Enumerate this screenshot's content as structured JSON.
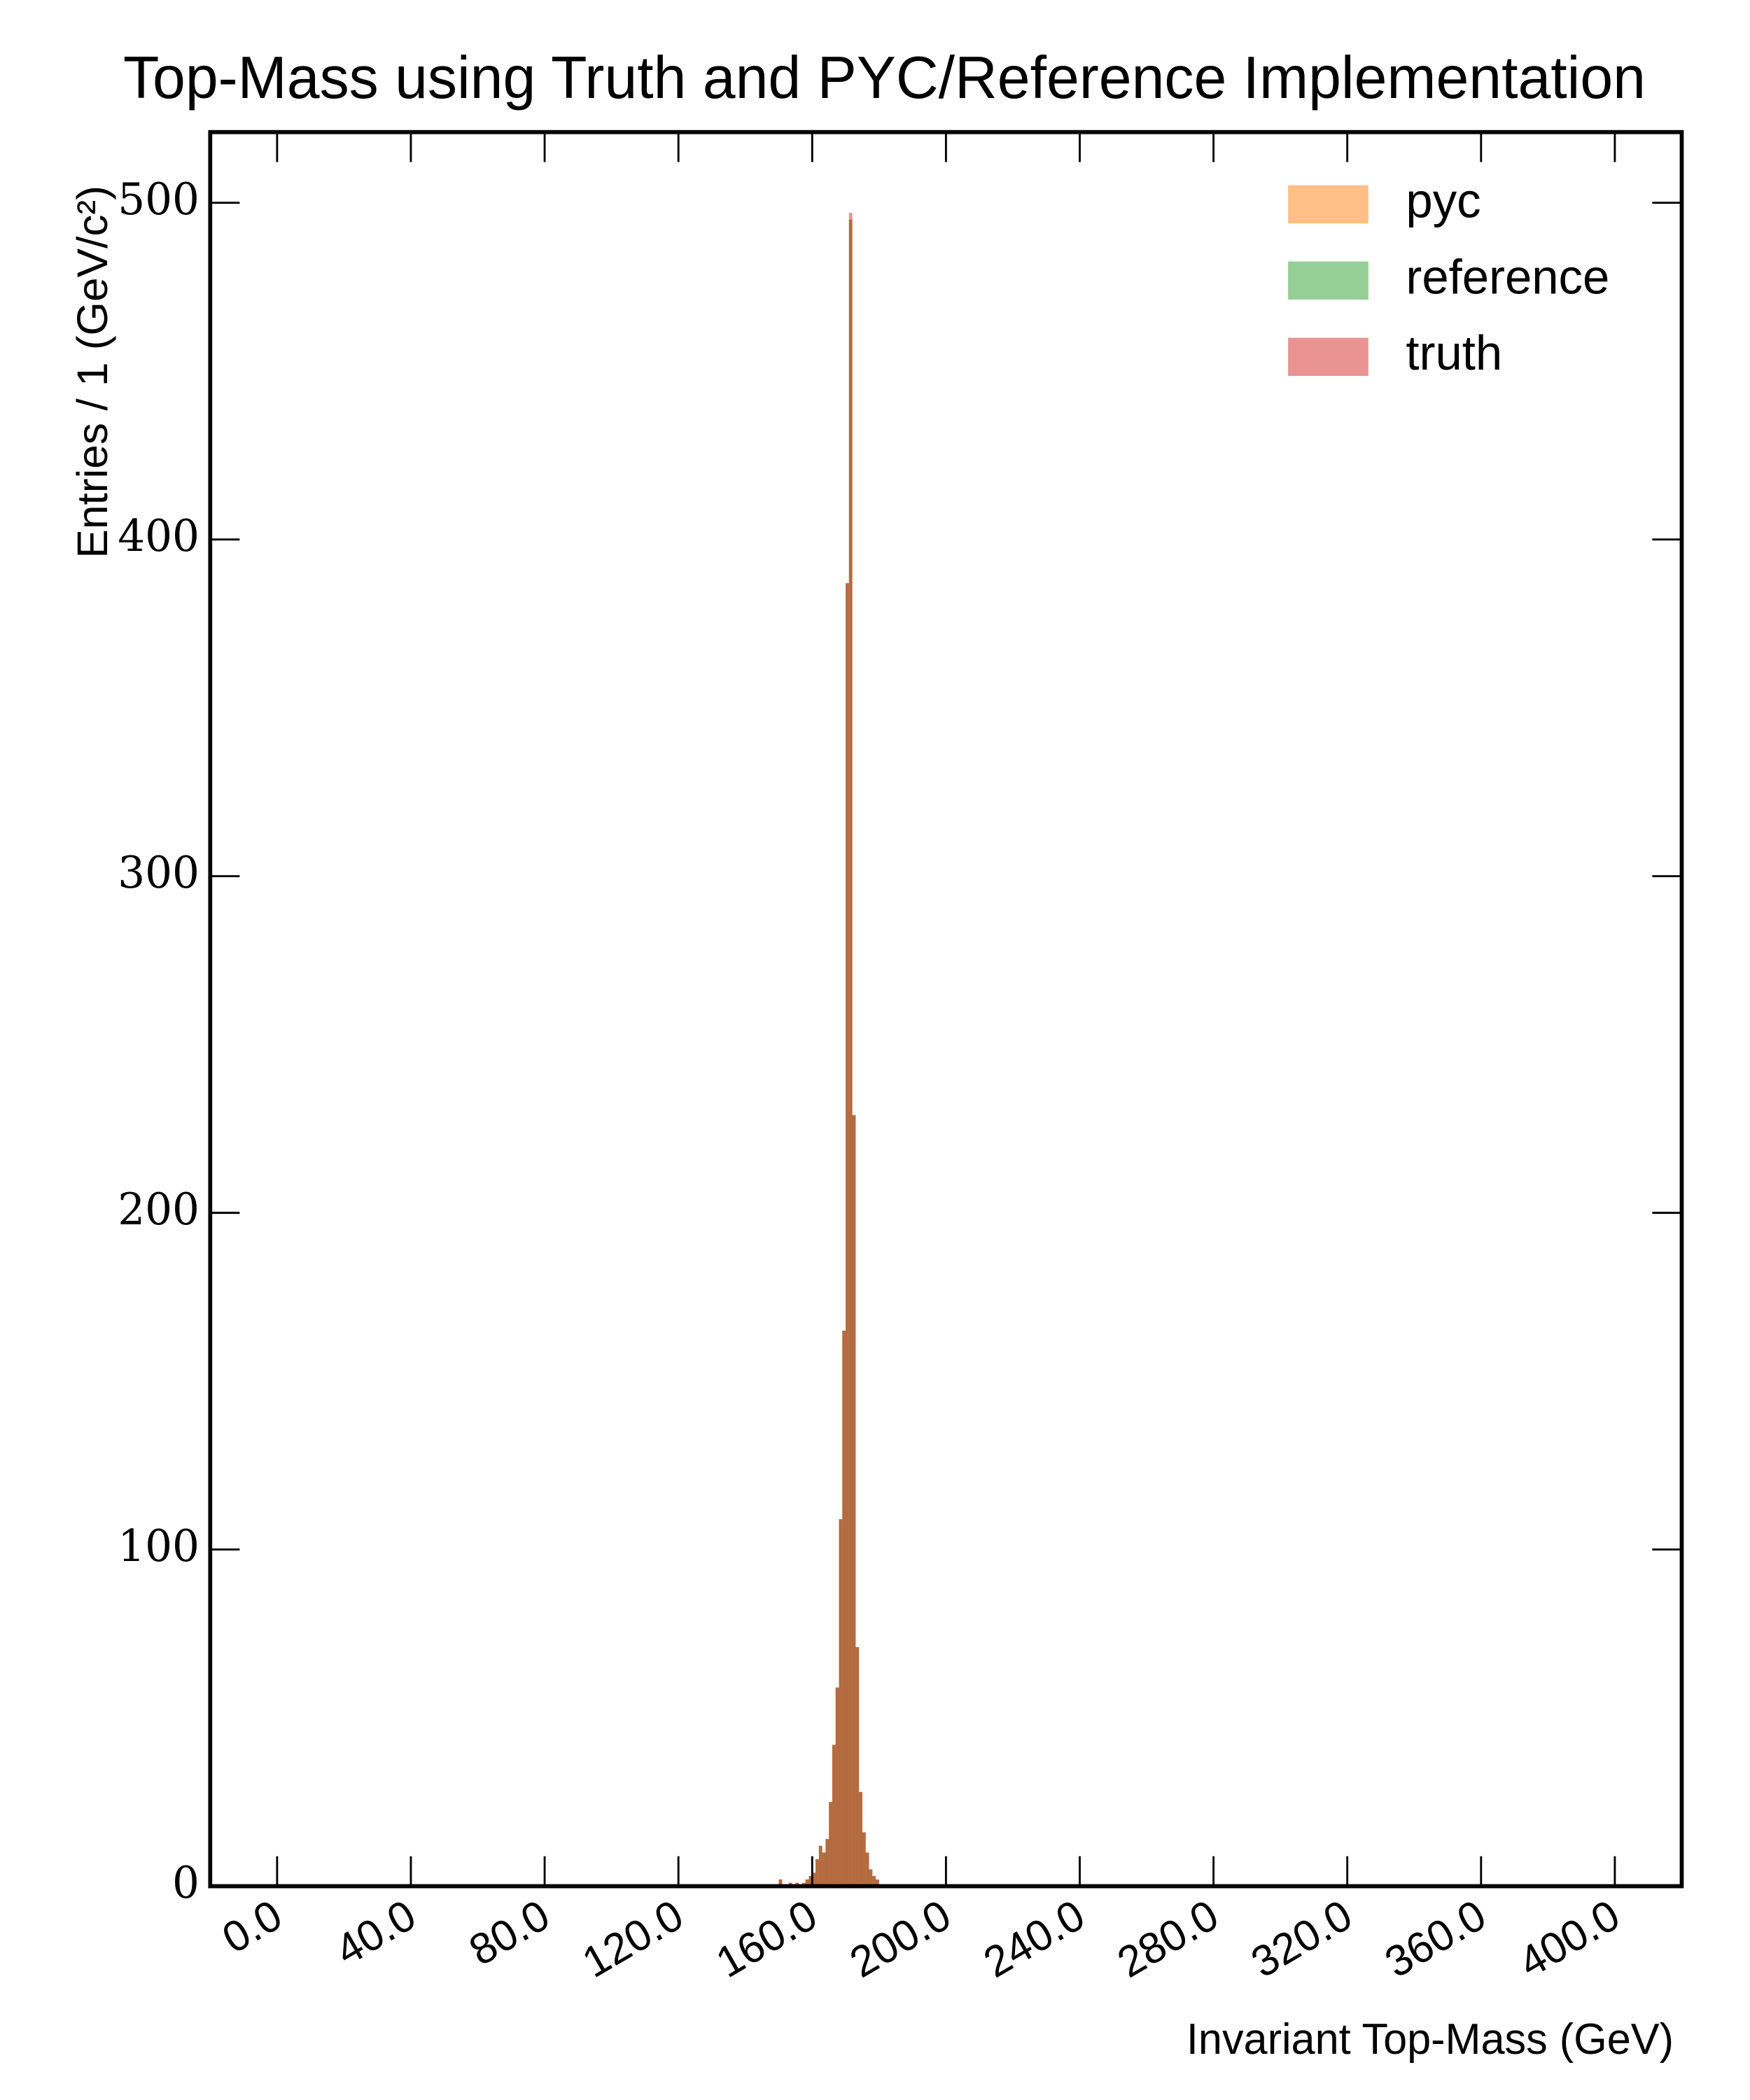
{
  "chart_data": {
    "type": "histogram",
    "title": "Top-Mass using Truth and PYC/Reference Implementation",
    "xlabel": "Invariant Top-Mass (GeV)",
    "ylabel": "Entries / 1 (GeV/c²)",
    "bins": [
      150,
      151,
      152,
      153,
      154,
      155,
      156,
      157,
      158,
      159,
      160,
      161,
      162,
      163,
      164,
      165,
      166,
      167,
      168,
      169,
      170,
      171,
      172,
      173,
      174,
      175,
      176,
      177,
      178,
      179,
      180
    ],
    "series": [
      {
        "name": "pyc",
        "color": "#ff7f0e",
        "values": [
          2,
          0,
          0,
          1,
          0,
          1,
          0,
          1,
          2,
          3,
          4,
          8,
          12,
          10,
          14,
          25,
          42,
          59,
          109,
          165,
          387,
          495,
          229,
          71,
          28,
          16,
          10,
          5,
          3,
          2
        ]
      },
      {
        "name": "reference",
        "color": "#2ca02c",
        "values": [
          2,
          0,
          0,
          1,
          0,
          1,
          0,
          1,
          2,
          3,
          4,
          8,
          12,
          10,
          14,
          25,
          42,
          59,
          109,
          165,
          387,
          495,
          229,
          71,
          28,
          16,
          10,
          5,
          3,
          2
        ]
      },
      {
        "name": "truth",
        "color": "#d62728",
        "values": [
          2,
          0,
          0,
          1,
          0,
          1,
          0,
          1,
          2,
          3,
          4,
          8,
          12,
          10,
          14,
          25,
          42,
          59,
          109,
          165,
          387,
          497,
          229,
          71,
          28,
          16,
          10,
          5,
          3,
          2
        ]
      }
    ],
    "opacity": 0.5,
    "xlim": [
      -20,
      420
    ],
    "ylim": [
      0,
      521
    ],
    "xticks": [
      {
        "value": 0,
        "label": "0.0"
      },
      {
        "value": 40,
        "label": "40.0"
      },
      {
        "value": 80,
        "label": "80.0"
      },
      {
        "value": 120,
        "label": "120.0"
      },
      {
        "value": 160,
        "label": "160.0"
      },
      {
        "value": 200,
        "label": "200.0"
      },
      {
        "value": 240,
        "label": "240.0"
      },
      {
        "value": 280,
        "label": "280.0"
      },
      {
        "value": 320,
        "label": "320.0"
      },
      {
        "value": 360,
        "label": "360.0"
      },
      {
        "value": 400,
        "label": "400.0"
      }
    ],
    "yticks": [
      0,
      100,
      200,
      300,
      400,
      500
    ],
    "legend": "upper right"
  }
}
